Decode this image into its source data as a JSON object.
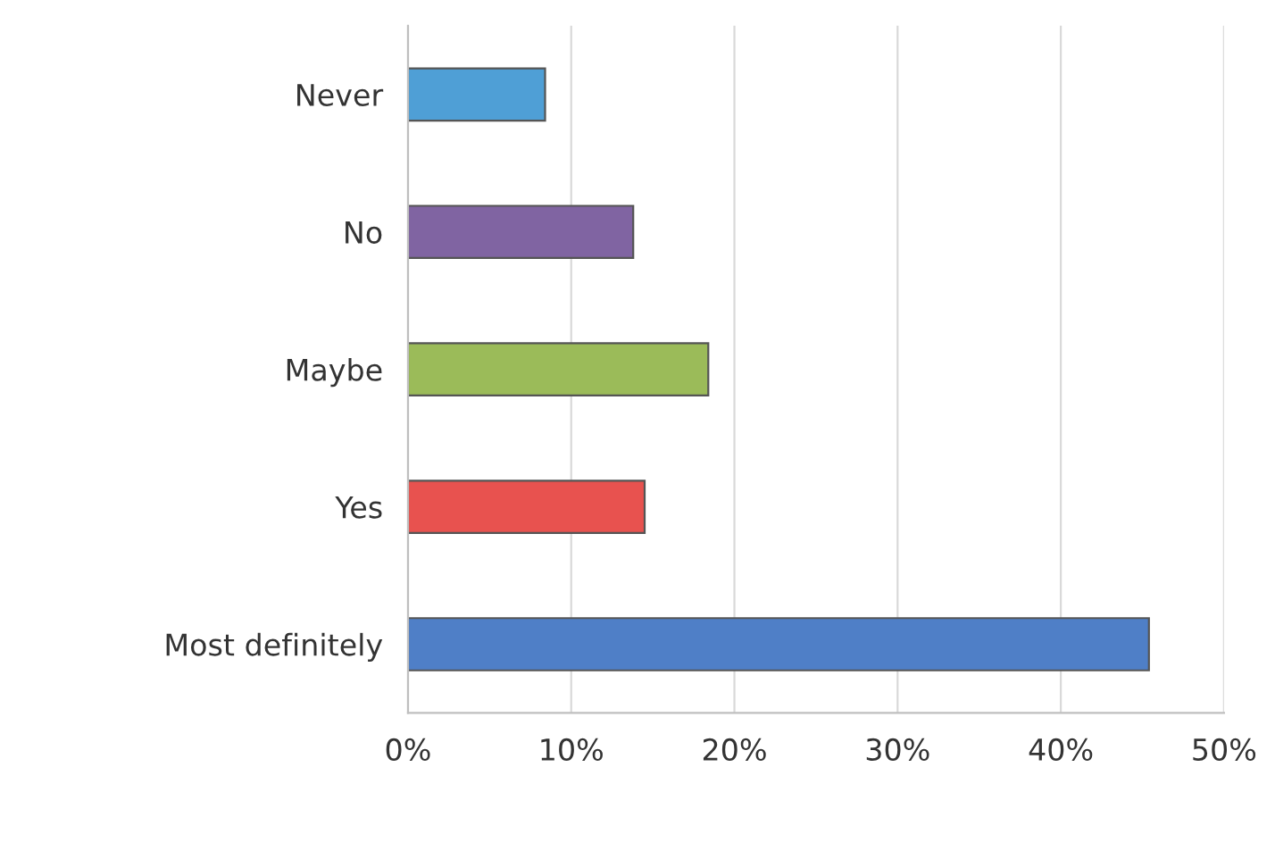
{
  "chart_data": {
    "type": "bar",
    "orientation": "horizontal",
    "categories": [
      "Never",
      "No",
      "Maybe",
      "Yes",
      "Most definitely"
    ],
    "values": [
      8.4,
      13.8,
      18.4,
      14.5,
      45.4
    ],
    "colors": [
      "#4f9fd6",
      "#8064a2",
      "#9bbb59",
      "#e8524f",
      "#4f7fc7"
    ],
    "xlim": [
      0,
      50
    ],
    "xticks": [
      {
        "value": 0,
        "label": "0%"
      },
      {
        "value": 10,
        "label": "10%"
      },
      {
        "value": 20,
        "label": "20%"
      },
      {
        "value": 30,
        "label": "30%"
      },
      {
        "value": 40,
        "label": "40%"
      },
      {
        "value": 50,
        "label": "50%"
      }
    ],
    "grid": "x",
    "legend": false
  }
}
